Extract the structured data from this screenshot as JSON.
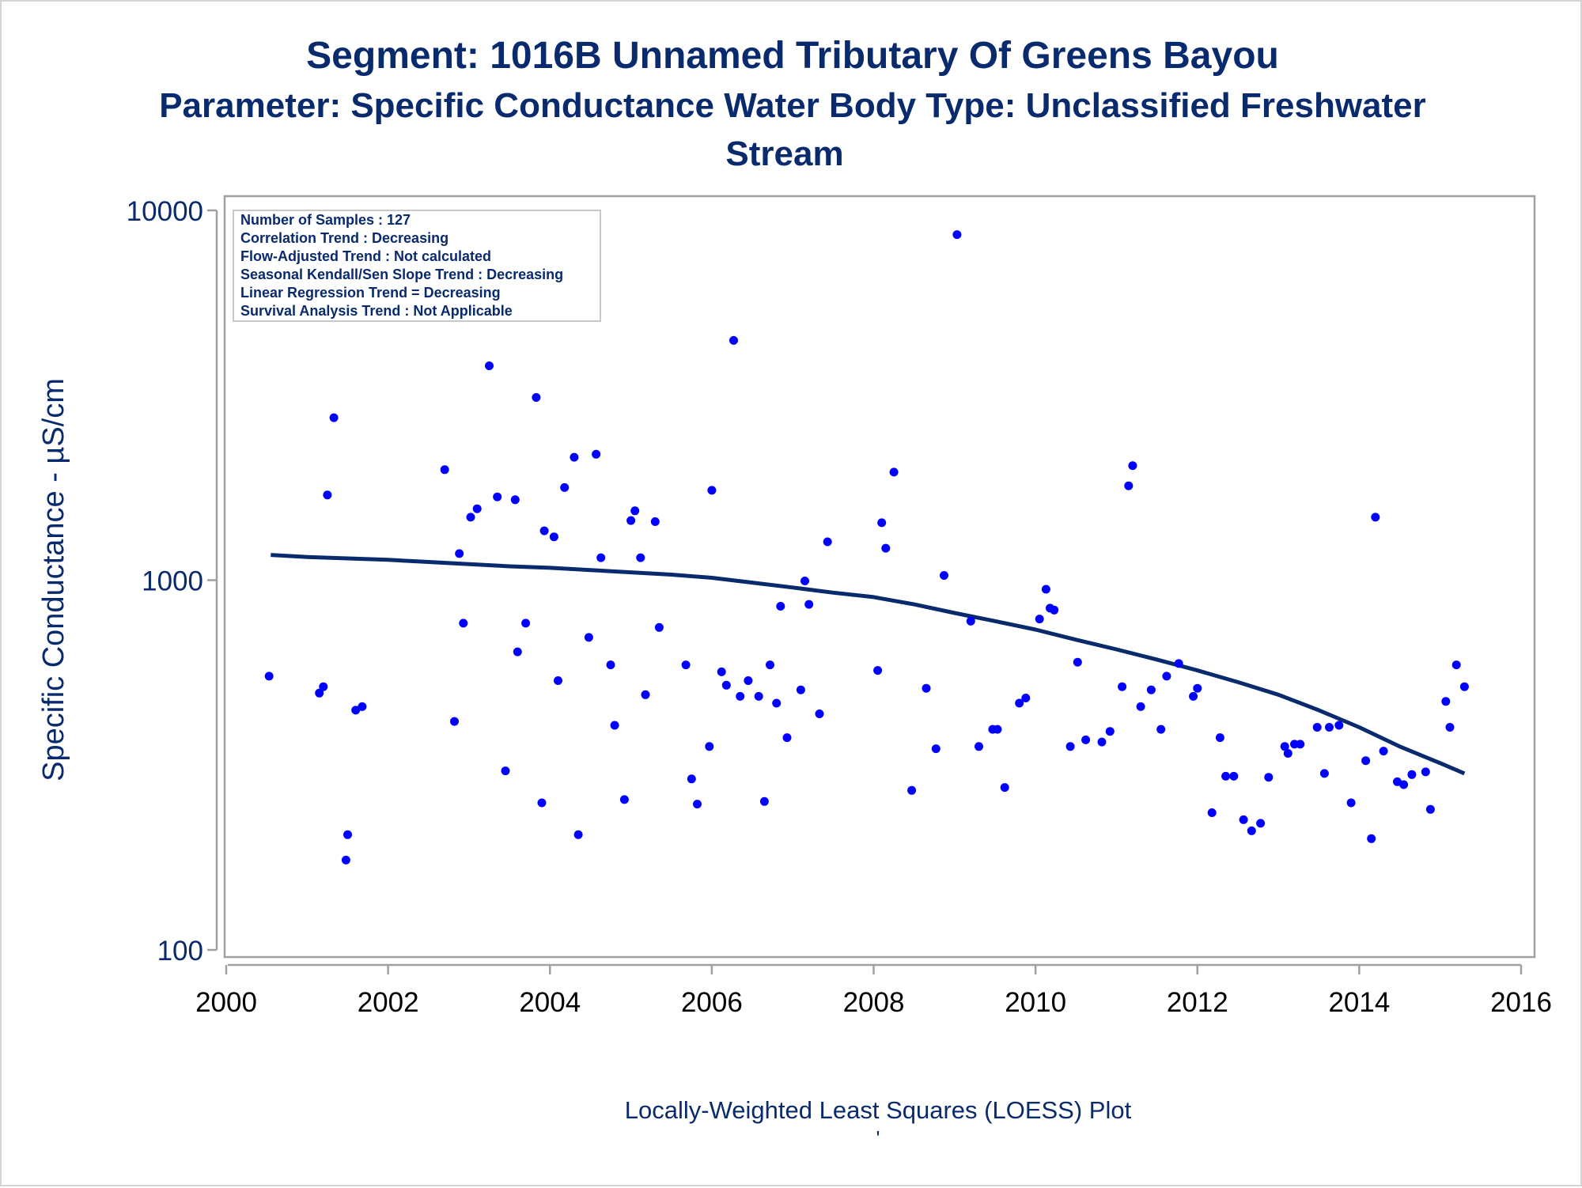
{
  "title_line1": "Segment: 1016B  Unnamed Tributary Of Greens Bayou",
  "title_line2": "Parameter: Specific Conductance   Water Body Type: Unclassified Freshwater",
  "title_line3": "Stream",
  "footnote": "Locally-Weighted Least Squares (LOESS) Plot",
  "footnote_mark": "'",
  "stats_box": [
    "Number of Samples : 127",
    "Correlation Trend : Decreasing",
    "Flow-Adjusted Trend : Not calculated",
    "Seasonal Kendall/Sen Slope Trend : Decreasing",
    "Linear Regression Trend = Decreasing",
    "Survival Analysis Trend : Not Applicable"
  ],
  "colors": {
    "text": "#0a2a6e",
    "points": "#0000ff",
    "loess": "#0a2a6e",
    "axis": "#a0a0a0"
  },
  "chart_data": {
    "type": "scatter",
    "ylabel": "Specific Conductance -  µS/cm",
    "xlabel": "",
    "yscale": "log",
    "ylim": [
      100,
      10000
    ],
    "xlim": [
      2000,
      2016
    ],
    "y_ticks": [
      "100",
      "1000",
      "10000"
    ],
    "x_ticks": [
      "2000",
      "2002",
      "2004",
      "2006",
      "2008",
      "2010",
      "2012",
      "2014",
      "2016"
    ],
    "series": [
      {
        "kind": "points",
        "points": [
          [
            2000.53,
            550
          ],
          [
            2001.15,
            495
          ],
          [
            2001.2,
            515
          ],
          [
            2001.25,
            1700
          ],
          [
            2001.33,
            2750
          ],
          [
            2001.48,
            175
          ],
          [
            2001.5,
            205
          ],
          [
            2001.6,
            445
          ],
          [
            2001.68,
            455
          ],
          [
            2002.7,
            1990
          ],
          [
            2002.82,
            415
          ],
          [
            2002.88,
            1180
          ],
          [
            2002.93,
            765
          ],
          [
            2003.02,
            1480
          ],
          [
            2003.1,
            1560
          ],
          [
            2003.25,
            3800
          ],
          [
            2003.35,
            1680
          ],
          [
            2003.45,
            305
          ],
          [
            2003.57,
            1650
          ],
          [
            2003.6,
            640
          ],
          [
            2003.7,
            765
          ],
          [
            2003.83,
            3120
          ],
          [
            2003.9,
            250
          ],
          [
            2003.93,
            1360
          ],
          [
            2004.05,
            1310
          ],
          [
            2004.1,
            535
          ],
          [
            2004.18,
            1780
          ],
          [
            2004.3,
            2150
          ],
          [
            2004.35,
            205
          ],
          [
            2004.48,
            700
          ],
          [
            2004.57,
            2190
          ],
          [
            2004.63,
            1150
          ],
          [
            2004.75,
            590
          ],
          [
            2004.8,
            405
          ],
          [
            2004.92,
            255
          ],
          [
            2005.0,
            1450
          ],
          [
            2005.05,
            1540
          ],
          [
            2005.12,
            1150
          ],
          [
            2005.18,
            490
          ],
          [
            2005.3,
            1440
          ],
          [
            2005.35,
            745
          ],
          [
            2005.68,
            590
          ],
          [
            2005.75,
            290
          ],
          [
            2005.82,
            248
          ],
          [
            2005.97,
            355
          ],
          [
            2006.0,
            1750
          ],
          [
            2006.12,
            565
          ],
          [
            2006.18,
            520
          ],
          [
            2006.27,
            4450
          ],
          [
            2006.35,
            485
          ],
          [
            2006.45,
            535
          ],
          [
            2006.58,
            485
          ],
          [
            2006.65,
            252
          ],
          [
            2006.72,
            590
          ],
          [
            2006.8,
            465
          ],
          [
            2006.85,
            850
          ],
          [
            2006.93,
            375
          ],
          [
            2007.1,
            505
          ],
          [
            2007.15,
            995
          ],
          [
            2007.2,
            860
          ],
          [
            2007.33,
            435
          ],
          [
            2007.43,
            1270
          ],
          [
            2008.05,
            570
          ],
          [
            2008.1,
            1430
          ],
          [
            2008.15,
            1220
          ],
          [
            2008.25,
            1960
          ],
          [
            2008.47,
            270
          ],
          [
            2008.65,
            510
          ],
          [
            2008.77,
            350
          ],
          [
            2008.87,
            1030
          ],
          [
            2009.03,
            8600
          ],
          [
            2009.2,
            775
          ],
          [
            2009.3,
            355
          ],
          [
            2009.47,
            395
          ],
          [
            2009.53,
            395
          ],
          [
            2009.62,
            275
          ],
          [
            2009.8,
            465
          ],
          [
            2009.88,
            480
          ],
          [
            2010.05,
            785
          ],
          [
            2010.13,
            945
          ],
          [
            2010.18,
            840
          ],
          [
            2010.23,
            830
          ],
          [
            2010.43,
            355
          ],
          [
            2010.52,
            600
          ],
          [
            2010.62,
            370
          ],
          [
            2010.82,
            365
          ],
          [
            2010.92,
            390
          ],
          [
            2011.07,
            515
          ],
          [
            2011.15,
            1800
          ],
          [
            2011.2,
            2040
          ],
          [
            2011.3,
            455
          ],
          [
            2011.43,
            505
          ],
          [
            2011.55,
            395
          ],
          [
            2011.62,
            550
          ],
          [
            2011.77,
            595
          ],
          [
            2011.95,
            485
          ],
          [
            2012.0,
            510
          ],
          [
            2012.18,
            235
          ],
          [
            2012.28,
            375
          ],
          [
            2012.35,
            295
          ],
          [
            2012.45,
            295
          ],
          [
            2012.57,
            225
          ],
          [
            2012.67,
            210
          ],
          [
            2012.78,
            220
          ],
          [
            2012.88,
            293
          ],
          [
            2013.08,
            355
          ],
          [
            2013.12,
            340
          ],
          [
            2013.2,
            360
          ],
          [
            2013.27,
            360
          ],
          [
            2013.48,
            400
          ],
          [
            2013.57,
            300
          ],
          [
            2013.63,
            400
          ],
          [
            2013.75,
            405
          ],
          [
            2013.9,
            250
          ],
          [
            2014.08,
            325
          ],
          [
            2014.15,
            200
          ],
          [
            2014.2,
            1480
          ],
          [
            2014.3,
            345
          ],
          [
            2014.47,
            285
          ],
          [
            2014.55,
            280
          ],
          [
            2014.65,
            298
          ],
          [
            2014.82,
            303
          ],
          [
            2014.88,
            240
          ],
          [
            2015.07,
            470
          ],
          [
            2015.12,
            400
          ],
          [
            2015.2,
            590
          ],
          [
            2015.3,
            515
          ]
        ]
      },
      {
        "kind": "loess",
        "points": [
          [
            2000.55,
            1170
          ],
          [
            2001.0,
            1155
          ],
          [
            2001.5,
            1145
          ],
          [
            2002.0,
            1135
          ],
          [
            2002.5,
            1120
          ],
          [
            2003.0,
            1105
          ],
          [
            2003.5,
            1090
          ],
          [
            2004.0,
            1080
          ],
          [
            2004.5,
            1065
          ],
          [
            2005.0,
            1050
          ],
          [
            2005.5,
            1035
          ],
          [
            2006.0,
            1015
          ],
          [
            2006.5,
            985
          ],
          [
            2007.0,
            955
          ],
          [
            2007.5,
            925
          ],
          [
            2008.0,
            900
          ],
          [
            2008.5,
            860
          ],
          [
            2009.0,
            815
          ],
          [
            2009.5,
            775
          ],
          [
            2010.0,
            735
          ],
          [
            2010.5,
            690
          ],
          [
            2011.0,
            650
          ],
          [
            2011.5,
            610
          ],
          [
            2012.0,
            570
          ],
          [
            2012.5,
            530
          ],
          [
            2013.0,
            490
          ],
          [
            2013.5,
            445
          ],
          [
            2014.0,
            400
          ],
          [
            2014.5,
            355
          ],
          [
            2015.0,
            320
          ],
          [
            2015.3,
            300
          ]
        ]
      }
    ]
  }
}
